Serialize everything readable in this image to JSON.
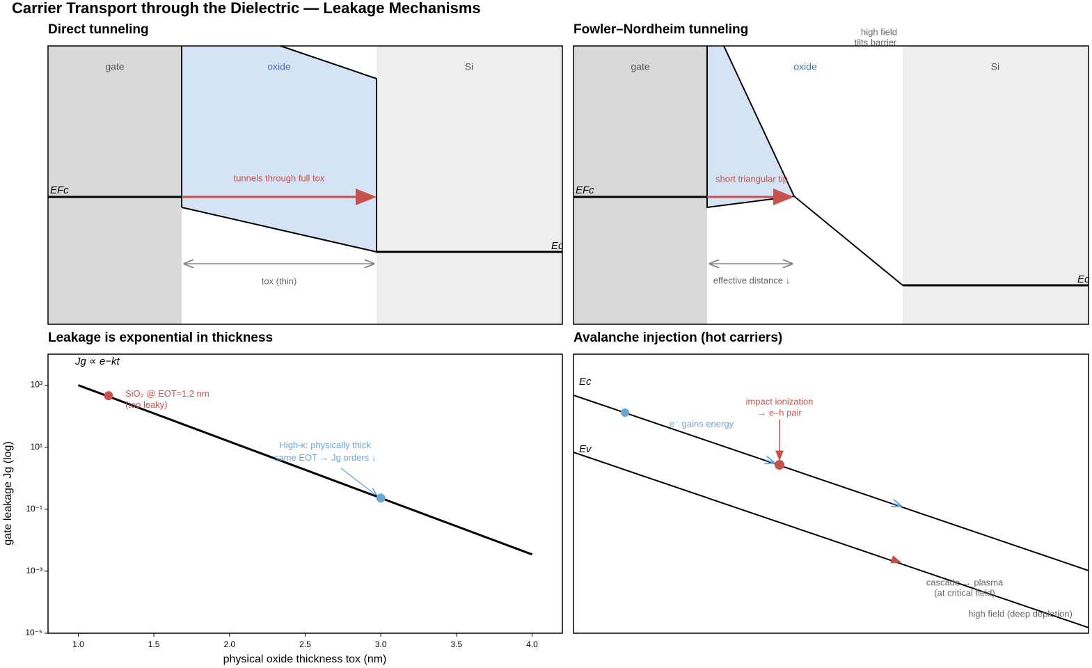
{
  "title": "Carrier Transport through the Dielectric — Leakage Mechanisms",
  "chart_data": [
    {
      "type": "band-diagram",
      "title": "Direct tunneling",
      "regions": [
        "gate",
        "oxide",
        "Si"
      ],
      "band_labels": [
        "EFc",
        "Ec"
      ],
      "annotations": [
        "tunnels through full tox",
        "tox (thin)"
      ]
    },
    {
      "type": "band-diagram",
      "title": "Fowler–Nordheim tunneling",
      "regions": [
        "gate",
        "oxide",
        "Si"
      ],
      "band_labels": [
        "EFc",
        "Ec"
      ],
      "annotations": [
        "high field",
        "tilts barrier",
        "short triangular tip",
        "effective distance ↓"
      ]
    },
    {
      "type": "line",
      "title": "Leakage is exponential in thickness",
      "xlabel": "physical oxide thickness  tox (nm)",
      "ylabel": "gate leakage  Jg  (log)",
      "formula": "Jg ∝ e−kt",
      "x": [
        1.0,
        1.5,
        2.0,
        2.5,
        3.0,
        3.5,
        4.0
      ],
      "values": [
        1000,
        123,
        15.1,
        1.86,
        0.229,
        0.0282,
        0.00347
      ],
      "color": "#000000",
      "log_y": true,
      "xlim": [
        0.8,
        4.2
      ],
      "ylim": [
        1e-05,
        10000
      ],
      "xticks": [
        {
          "value": 1,
          "label": "1.0"
        },
        {
          "value": 1.5,
          "label": "1.5"
        },
        {
          "value": 2,
          "label": "2.0"
        },
        {
          "value": 2.5,
          "label": "2.5"
        },
        {
          "value": 3,
          "label": "3.0"
        },
        {
          "value": 3.5,
          "label": "3.5"
        },
        {
          "value": 4,
          "label": "4.0"
        }
      ],
      "yticks": [
        {
          "value": 1000,
          "label": "10³"
        },
        {
          "value": 10,
          "label": "10¹"
        },
        {
          "value": 0.1,
          "label": "10⁻¹"
        },
        {
          "value": 0.001,
          "label": "10⁻³"
        },
        {
          "value": 1e-05,
          "label": "10⁻⁵"
        }
      ],
      "points": [
        {
          "x": 1.2,
          "y": 457,
          "color": "#c8504d",
          "label": [
            "SiO₂ @ EOT≈1.2 nm",
            "(too leaky)"
          ]
        },
        {
          "x": 3.0,
          "y": 0.229,
          "color": "#6aa6d8",
          "label": [
            "High-κ: physically thick",
            "same EOT → Jg orders ↓"
          ]
        }
      ]
    },
    {
      "type": "band-diagram",
      "title": "Avalanche injection (hot carriers)",
      "band_labels": [
        "Ec",
        "Ev"
      ],
      "annotations": [
        "e⁻ gains energy",
        "impact ionization",
        "→ e–h pair",
        "cascade → plasma",
        "(at critical field)",
        "high field (deep depletion)"
      ]
    }
  ]
}
